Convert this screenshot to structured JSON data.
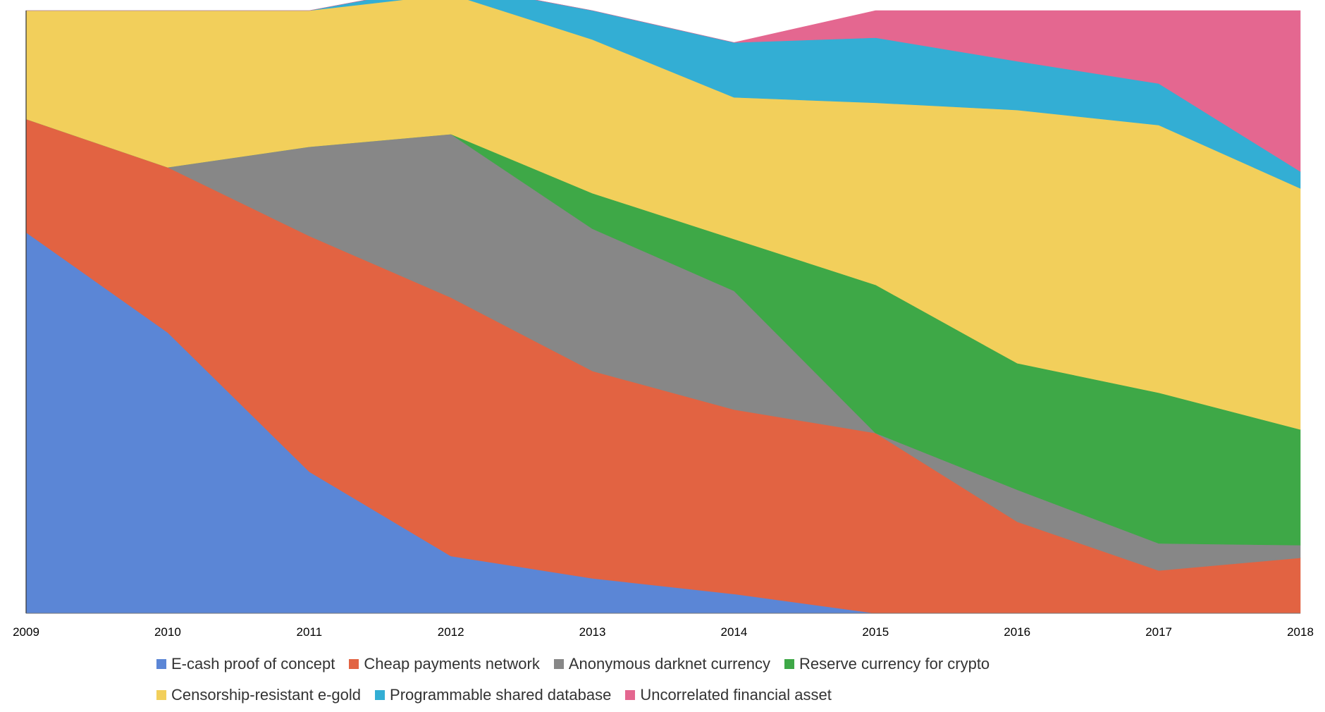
{
  "chart_data": {
    "type": "area",
    "stacked": true,
    "normalized": true,
    "x": [
      "2009",
      "2010",
      "2011",
      "2012",
      "2013",
      "2014",
      "2015",
      "2016",
      "2017",
      "2018"
    ],
    "ylim": [
      0,
      1
    ],
    "grid": false,
    "legend_position": "bottom",
    "series": [
      {
        "name": "E-cash proof of concept",
        "color": "#5b86d6",
        "values": [
          0.632,
          0.466,
          0.235,
          0.095,
          0.058,
          0.032,
          0.0,
          0.0,
          0.0,
          0.0
        ]
      },
      {
        "name": "Cheap payments network",
        "color": "#e26342",
        "values": [
          0.188,
          0.274,
          0.391,
          0.429,
          0.344,
          0.306,
          0.299,
          0.152,
          0.071,
          0.092
        ]
      },
      {
        "name": "Anonymous darknet currency",
        "color": "#878787",
        "values": [
          0.0,
          0.0,
          0.148,
          0.271,
          0.236,
          0.197,
          0.0,
          0.053,
          0.045,
          0.021
        ]
      },
      {
        "name": "Reserve currency for crypto",
        "color": "#3ea847",
        "values": [
          0.0,
          0.0,
          0.0,
          0.0,
          0.059,
          0.086,
          0.246,
          0.21,
          0.25,
          0.192
        ]
      },
      {
        "name": "Censorship-resistant e-gold",
        "color": "#f2cf5b",
        "values": [
          0.18,
          0.26,
          0.226,
          0.232,
          0.255,
          0.235,
          0.302,
          0.42,
          0.444,
          0.4
        ]
      },
      {
        "name": "Programmable shared database",
        "color": "#33aed4",
        "values": [
          0.0,
          0.0,
          0.0,
          0.017,
          0.048,
          0.091,
          0.108,
          0.081,
          0.069,
          0.028
        ]
      },
      {
        "name": "Uncorrelated financial asset",
        "color": "#e46790",
        "values": [
          0.0,
          0.0,
          0.0,
          0.0,
          0.0,
          0.0,
          0.045,
          0.084,
          0.121,
          0.267
        ]
      }
    ]
  }
}
